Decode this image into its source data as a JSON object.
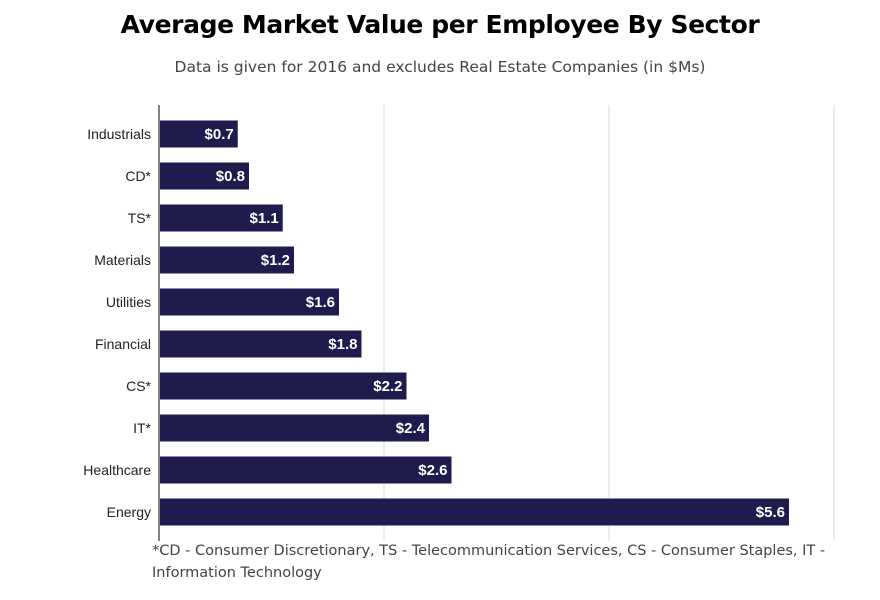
{
  "chart_data": {
    "type": "bar",
    "orientation": "horizontal",
    "title": "Average Market Value per Employee By Sector",
    "subtitle": "Data is given for 2016 and excludes Real Estate Companies (in $Ms)",
    "categories": [
      "Industrials",
      "CD*",
      "TS*",
      "Materials",
      "Utilities",
      "Financial",
      "CS*",
      "IT*",
      "Healthcare",
      "Energy"
    ],
    "values": [
      0.7,
      0.8,
      1.1,
      1.2,
      1.6,
      1.8,
      2.2,
      2.4,
      2.6,
      5.6
    ],
    "value_labels": [
      "$0.7",
      "$0.8",
      "$1.1",
      "$1.2",
      "$1.6",
      "$1.8",
      "$2.2",
      "$2.4",
      "$2.6",
      "$5.6"
    ],
    "xlim": [
      0,
      6
    ],
    "grid": true,
    "bar_color": "#1f1b4d",
    "footnote": "*CD - Consumer Discretionary, TS - Telecommunication Services, CS - Consumer Staples, IT - Information Technology"
  }
}
